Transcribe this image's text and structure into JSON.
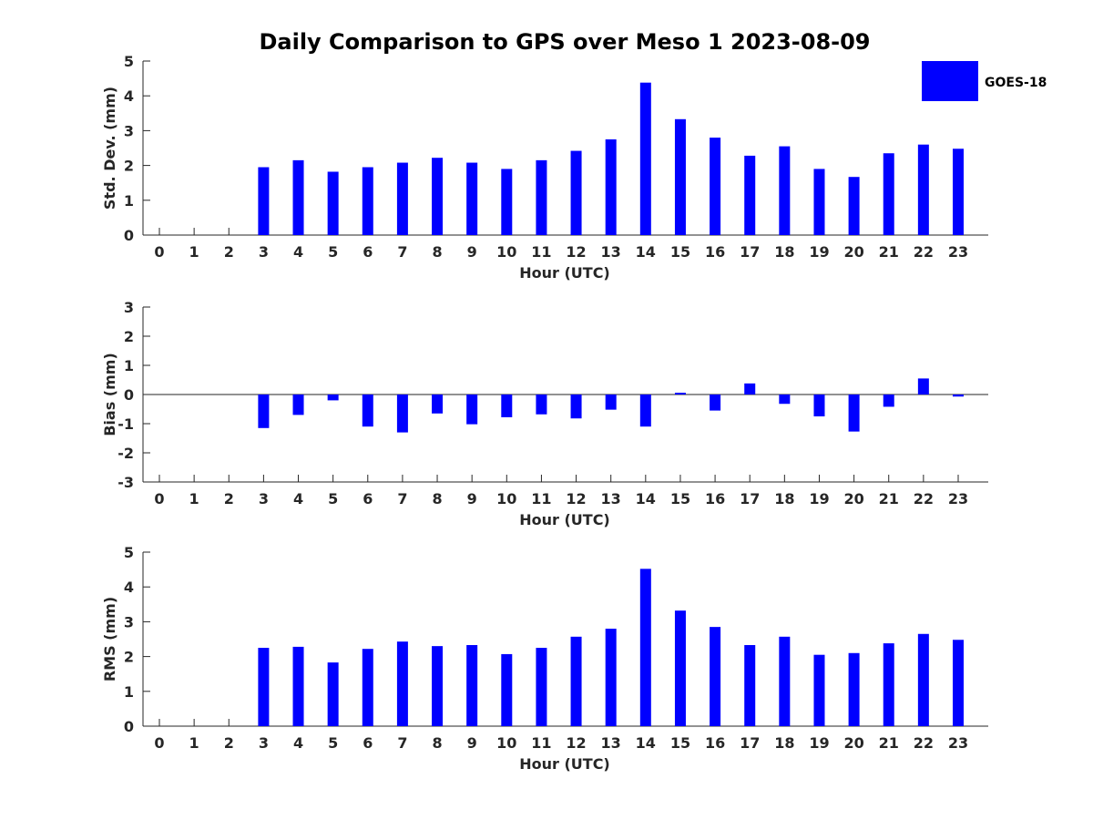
{
  "chart_data": {
    "type": "bar",
    "title": "Daily Comparison to GPS over Meso 1 2023-08-09",
    "legend": {
      "label": "GOES-18",
      "color": "#0000ff",
      "placement": "top-right"
    },
    "hours": [
      "0",
      "1",
      "2",
      "3",
      "4",
      "5",
      "6",
      "7",
      "8",
      "9",
      "10",
      "11",
      "12",
      "13",
      "14",
      "15",
      "16",
      "17",
      "18",
      "19",
      "20",
      "21",
      "22",
      "23"
    ],
    "panels": [
      {
        "name": "std",
        "ylabel": "Std. Dev. (mm)",
        "xlabel": "Hour (UTC)",
        "ylim": [
          0,
          5
        ],
        "yticks": [
          "0",
          "1",
          "2",
          "3",
          "4",
          "5"
        ],
        "values": [
          null,
          null,
          null,
          1.95,
          2.15,
          1.82,
          1.95,
          2.08,
          2.22,
          2.08,
          1.9,
          2.15,
          2.42,
          2.75,
          4.38,
          3.33,
          2.8,
          2.28,
          2.55,
          1.9,
          1.67,
          2.35,
          2.6,
          2.48
        ]
      },
      {
        "name": "bias",
        "ylabel": "Bias (mm)",
        "xlabel": "Hour (UTC)",
        "ylim": [
          -3,
          3
        ],
        "yticks": [
          "-3",
          "-2",
          "-1",
          "0",
          "1",
          "2",
          "3"
        ],
        "values": [
          null,
          null,
          null,
          -1.15,
          -0.7,
          -0.2,
          -1.1,
          -1.3,
          -0.65,
          -1.02,
          -0.78,
          -0.68,
          -0.82,
          -0.52,
          -1.1,
          0.06,
          -0.55,
          0.38,
          -0.32,
          -0.75,
          -1.27,
          -0.42,
          0.55,
          -0.07
        ]
      },
      {
        "name": "rms",
        "ylabel": "RMS (mm)",
        "xlabel": "Hour (UTC)",
        "ylim": [
          0,
          5
        ],
        "yticks": [
          "0",
          "1",
          "2",
          "3",
          "4",
          "5"
        ],
        "values": [
          null,
          null,
          null,
          2.25,
          2.28,
          1.83,
          2.22,
          2.43,
          2.3,
          2.33,
          2.07,
          2.25,
          2.57,
          2.8,
          4.52,
          3.32,
          2.85,
          2.33,
          2.57,
          2.05,
          2.1,
          2.38,
          2.65,
          2.48
        ]
      }
    ]
  }
}
